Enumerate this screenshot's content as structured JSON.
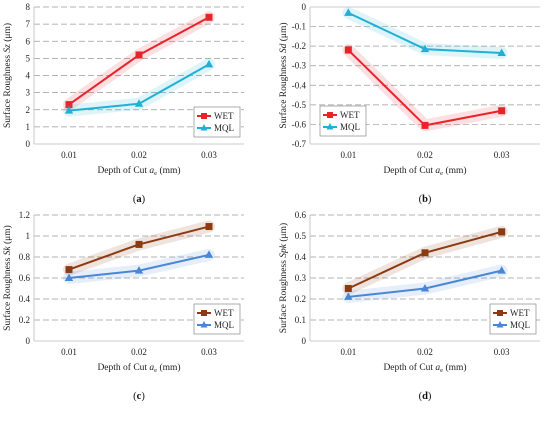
{
  "chart_data": [
    {
      "type": "line",
      "panel_label": "(a)",
      "panel_letter": "a",
      "xlabel": "Depth of Cut",
      "xsym": "a",
      "xsub": "e",
      "xunit": " (mm)",
      "ylabel": "Surface Roughness",
      "ysym": "Sz",
      "yunit": " (μm)",
      "categories": [
        "0.01",
        "0.02",
        "0.03"
      ],
      "ylim": [
        0,
        8
      ],
      "yticks": [
        0,
        1,
        2,
        3,
        4,
        5,
        6,
        7,
        8
      ],
      "ytick_labels": [
        "0",
        "1",
        "2",
        "3",
        "4",
        "5",
        "6",
        "7",
        "8"
      ],
      "grid": true,
      "legend": "bottom-right",
      "series": [
        {
          "name": "WET",
          "values": [
            2.3,
            5.2,
            7.4
          ],
          "color": "#e8242b",
          "marker": "square"
        },
        {
          "name": "MQL",
          "values": [
            1.95,
            2.35,
            4.65
          ],
          "color": "#1fb0d6",
          "marker": "triangle"
        }
      ]
    },
    {
      "type": "line",
      "panel_label": "(b)",
      "panel_letter": "b",
      "xlabel": "Depth of Cut",
      "xsym": "a",
      "xsub": "e",
      "xunit": " (mm)",
      "ylabel": "Surface Roughness",
      "ysym": "Sd",
      "yunit": " (μm)",
      "categories": [
        "0.01",
        "0.02",
        "0.03"
      ],
      "ylim": [
        -0.7,
        0
      ],
      "yticks": [
        -0.7,
        -0.6,
        -0.5,
        -0.4,
        -0.3,
        -0.2,
        -0.1,
        0
      ],
      "ytick_labels": [
        "-0.7",
        "-0.6",
        "-0.5",
        "-0.4",
        "-0.3",
        "-0.2",
        "-0.1",
        "0"
      ],
      "grid": true,
      "legend": "bottom-left",
      "series": [
        {
          "name": "WET",
          "values": [
            -0.22,
            -0.605,
            -0.53
          ],
          "color": "#e8242b",
          "marker": "square"
        },
        {
          "name": "MQL",
          "values": [
            -0.03,
            -0.215,
            -0.235
          ],
          "color": "#1fb0d6",
          "marker": "triangle"
        }
      ]
    },
    {
      "type": "line",
      "panel_label": "(c)",
      "panel_letter": "c",
      "xlabel": "Depth of Cut",
      "xsym": "a",
      "xsub": "e",
      "xunit": " (mm)",
      "ylabel": "Surface Roughness",
      "ysym": "Sk",
      "yunit": " (μm)",
      "categories": [
        "0.01",
        "0.02",
        "0.03"
      ],
      "ylim": [
        0,
        1.2
      ],
      "yticks": [
        0,
        0.2,
        0.4,
        0.6,
        0.8,
        1,
        1.2
      ],
      "ytick_labels": [
        "0",
        "0.2",
        "0.4",
        "0.6",
        "0.8",
        "1",
        "1.2"
      ],
      "grid": true,
      "legend": "bottom-right",
      "series": [
        {
          "name": "WET",
          "values": [
            0.68,
            0.92,
            1.09
          ],
          "color": "#8b3a12",
          "marker": "square"
        },
        {
          "name": "MQL",
          "values": [
            0.6,
            0.67,
            0.82
          ],
          "color": "#4a86d6",
          "marker": "triangle"
        }
      ]
    },
    {
      "type": "line",
      "panel_label": "(d)",
      "panel_letter": "d",
      "xlabel": "Depth of Cut",
      "xsym": "a",
      "xsub": "e",
      "xunit": " (mm)",
      "ylabel": "Surface Roughness",
      "ysym": "Spk",
      "yunit": " (μm)",
      "categories": [
        "0.01",
        "0.02",
        "0.03"
      ],
      "ylim": [
        0,
        0.6
      ],
      "yticks": [
        0,
        0.1,
        0.2,
        0.3,
        0.4,
        0.5,
        0.6
      ],
      "ytick_labels": [
        "0",
        "0.1",
        "0.2",
        "0.3",
        "0.4",
        "0.5",
        "0.6"
      ],
      "grid": true,
      "legend": "bottom-right",
      "series": [
        {
          "name": "WET",
          "values": [
            0.25,
            0.42,
            0.52
          ],
          "color": "#8b3a12",
          "marker": "square"
        },
        {
          "name": "MQL",
          "values": [
            0.21,
            0.25,
            0.335
          ],
          "color": "#4a86d6",
          "marker": "triangle"
        }
      ]
    }
  ]
}
